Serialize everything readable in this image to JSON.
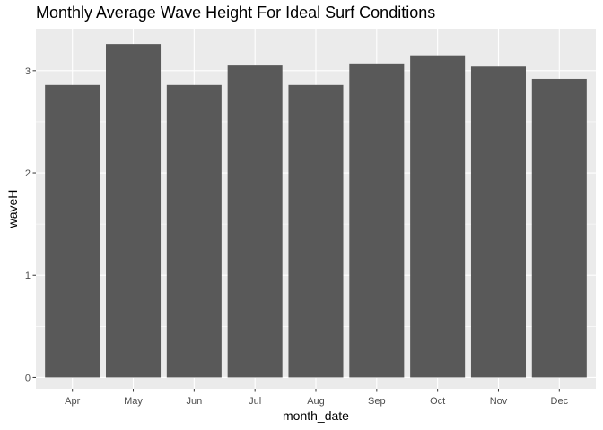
{
  "chart_data": {
    "type": "bar",
    "title": "Monthly Average Wave Height For Ideal Surf Conditions",
    "xlabel": "month_date",
    "ylabel": "waveH",
    "categories": [
      "Apr",
      "May",
      "Jun",
      "Jul",
      "Aug",
      "Sep",
      "Oct",
      "Nov",
      "Dec"
    ],
    "values": [
      2.86,
      3.26,
      2.86,
      3.05,
      2.86,
      3.07,
      3.15,
      3.04,
      2.92
    ],
    "ylim": [
      -0.11,
      3.41
    ],
    "yticks": [
      0,
      1,
      2,
      3
    ],
    "grid": true,
    "legend": "none",
    "colors": {
      "bar": "#595959",
      "panel": "#ebebeb",
      "grid_major": "#ffffff",
      "tick": "#333333"
    }
  }
}
